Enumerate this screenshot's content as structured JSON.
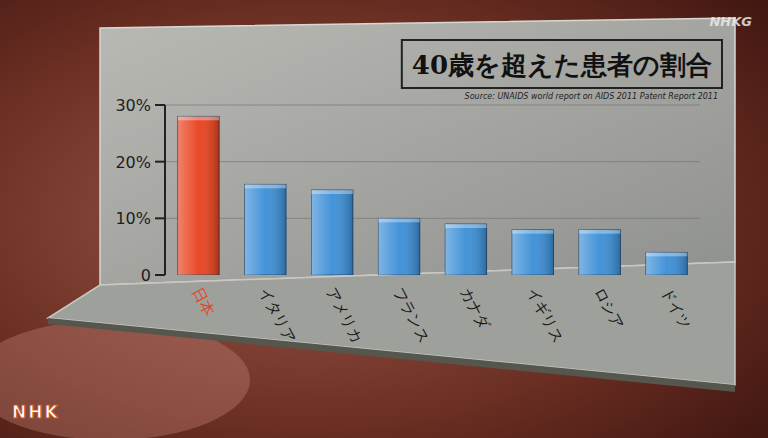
{
  "chart_data": {
    "type": "bar",
    "title": "40歳を超えた患者の割合",
    "subtitle": "Source: UNAIDS world report on AIDS 2011  Patent Report 2011",
    "categories": [
      "日本",
      "イタリア",
      "アメリカ",
      "フランス",
      "カナダ",
      "イギリス",
      "ロシア",
      "ドイツ"
    ],
    "values": [
      28,
      16,
      15,
      10,
      9,
      8,
      8,
      4
    ],
    "colors": [
      "#e8401c",
      "#3a8ed6",
      "#3a8ed6",
      "#3a8ed6",
      "#3a8ed6",
      "#3a8ed6",
      "#3a8ed6",
      "#3a8ed6"
    ],
    "ylim": [
      0,
      30
    ],
    "yticks": [
      0,
      {
        "value": 10,
        "label": "10%"
      },
      {
        "value": 20,
        "label": "20%"
      },
      {
        "value": 30,
        "label": "30%"
      }
    ],
    "grid": true,
    "annotations": [
      "NHKG",
      "NHK"
    ]
  }
}
